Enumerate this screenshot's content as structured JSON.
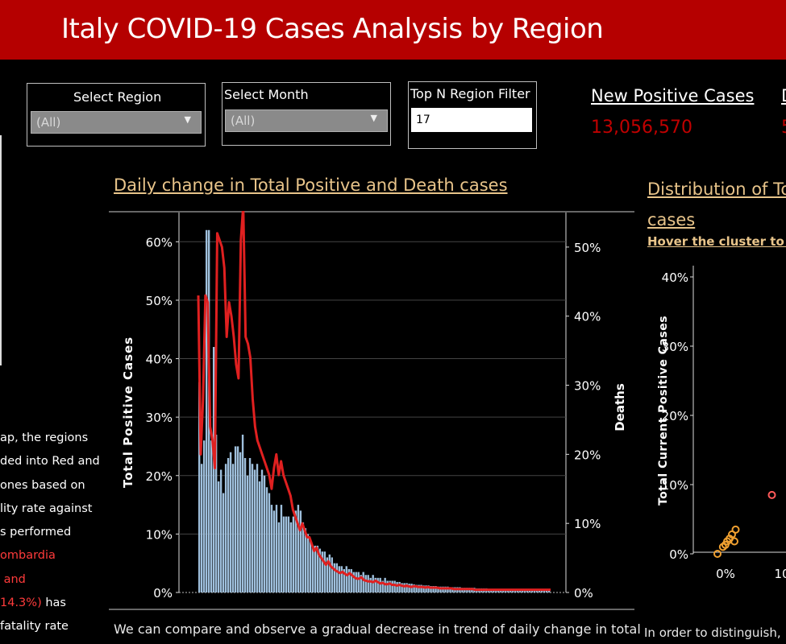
{
  "header": {
    "title": "Italy COVID-19 Cases Analysis by Region"
  },
  "filters": {
    "region": {
      "title": "Select Region",
      "value": "(All)"
    },
    "month": {
      "title": "Select Month",
      "value": "(All)"
    },
    "topn": {
      "title": "Top N Region Filter",
      "value": "17"
    }
  },
  "kpis": [
    {
      "label": "New Positive Cases",
      "value": "13,056,570"
    },
    {
      "label": "D",
      "value": "5"
    }
  ],
  "sidebar": {
    "lines": [
      "ap, the regions",
      "ded into Red and",
      "ones based on",
      "lity rate against",
      "s performed",
      "ombardia",
      " and",
      "14.3%) has",
      "fatality rate"
    ]
  },
  "colors": {
    "header": "#b50000",
    "bars": "#9fc0dd",
    "line": "#e02020",
    "accent_title": "#e8c48a",
    "kpi_value": "#c00000"
  },
  "main_chart": {
    "title": "Daily change in Total Positive and Death cases",
    "caption": "We can compare and  observe a gradual decrease in trend of daily change in total"
  },
  "right_chart": {
    "title_line1": "Distribution of To",
    "title_line2": "cases",
    "subtitle": "Hover the cluster to vi",
    "caption": "In order to distinguish,"
  },
  "chart_data": [
    {
      "type": "bar",
      "title": "Daily change in Total Positive and Death cases",
      "ylabel": "Total Positive Cases",
      "y2label": "Deaths",
      "ylim": [
        0,
        0.65
      ],
      "y2lim": [
        0,
        0.55
      ],
      "yticks": [
        "0%",
        "10%",
        "20%",
        "30%",
        "40%",
        "50%",
        "60%"
      ],
      "y2ticks": [
        "0%",
        "10%",
        "20%",
        "30%",
        "40%",
        "50%"
      ],
      "grid": true,
      "series": [
        {
          "kind": "bar",
          "values": [
            0.36,
            0.22,
            0.26,
            0.62,
            0.62,
            0.26,
            0.42,
            0.27,
            0.19,
            0.21,
            0.17,
            0.22,
            0.23,
            0.24,
            0.22,
            0.25,
            0.25,
            0.24,
            0.27,
            0.23,
            0.2,
            0.23,
            0.22,
            0.21,
            0.22,
            0.19,
            0.21,
            0.2,
            0.18,
            0.17,
            0.15,
            0.14,
            0.15,
            0.12,
            0.15,
            0.13,
            0.13,
            0.13,
            0.12,
            0.13,
            0.14,
            0.15,
            0.14,
            0.12,
            0.11,
            0.1,
            0.09,
            0.08,
            0.08,
            0.08,
            0.075,
            0.07,
            0.07,
            0.06,
            0.065,
            0.06,
            0.05,
            0.05,
            0.045,
            0.045,
            0.04,
            0.045,
            0.04,
            0.04,
            0.035,
            0.035,
            0.035,
            0.03,
            0.035,
            0.03,
            0.03,
            0.025,
            0.03,
            0.025,
            0.025,
            0.025,
            0.02,
            0.025,
            0.02,
            0.02,
            0.02,
            0.02,
            0.018,
            0.018,
            0.016,
            0.016,
            0.016,
            0.015,
            0.015,
            0.014,
            0.013,
            0.013,
            0.013,
            0.012,
            0.012,
            0.012,
            0.011,
            0.011,
            0.011,
            0.01,
            0.01,
            0.01,
            0.01,
            0.01,
            0.009,
            0.009,
            0.009,
            0.009,
            0.009,
            0.008,
            0.008,
            0.008,
            0.008,
            0.008,
            0.008,
            0.007,
            0.007,
            0.007,
            0.007,
            0.007,
            0.006,
            0.006,
            0.006,
            0.006,
            0.006,
            0.006,
            0.005,
            0.005,
            0.005,
            0.005,
            0.005,
            0.005,
            0.005,
            0.005,
            0.004,
            0.004,
            0.004,
            0.004,
            0.004,
            0.004,
            0.004,
            0.004,
            0.004,
            0.004,
            0.004,
            0.004
          ]
        },
        {
          "kind": "line",
          "axis": "secondary",
          "values": [
            0.43,
            0.2,
            0.28,
            0.43,
            0.42,
            0.24,
            0.22,
            0.18,
            0.52,
            0.51,
            0.5,
            0.47,
            0.37,
            0.42,
            0.4,
            0.37,
            0.33,
            0.31,
            0.51,
            0.56,
            0.37,
            0.36,
            0.34,
            0.28,
            0.24,
            0.22,
            0.21,
            0.2,
            0.19,
            0.18,
            0.17,
            0.15,
            0.18,
            0.2,
            0.17,
            0.19,
            0.17,
            0.16,
            0.15,
            0.14,
            0.12,
            0.11,
            0.1,
            0.09,
            0.1,
            0.09,
            0.08,
            0.08,
            0.07,
            0.06,
            0.065,
            0.055,
            0.05,
            0.045,
            0.04,
            0.045,
            0.038,
            0.035,
            0.032,
            0.03,
            0.028,
            0.03,
            0.027,
            0.025,
            0.028,
            0.025,
            0.022,
            0.02,
            0.02,
            0.022,
            0.018,
            0.017,
            0.016,
            0.016,
            0.015,
            0.017,
            0.015,
            0.013,
            0.014,
            0.012,
            0.012,
            0.013,
            0.011,
            0.011,
            0.01,
            0.011,
            0.01,
            0.009,
            0.01,
            0.009,
            0.008,
            0.009,
            0.009,
            0.008,
            0.008,
            0.008,
            0.007,
            0.008,
            0.007,
            0.007,
            0.007,
            0.007,
            0.006,
            0.006,
            0.006,
            0.006,
            0.006,
            0.006,
            0.005,
            0.005,
            0.005,
            0.005,
            0.005,
            0.005,
            0.005,
            0.005,
            0.005,
            0.004,
            0.004,
            0.004,
            0.004,
            0.004,
            0.004,
            0.004,
            0.004,
            0.004,
            0.004,
            0.004,
            0.004,
            0.004,
            0.004,
            0.004,
            0.004,
            0.004,
            0.004,
            0.004,
            0.004,
            0.004,
            0.004,
            0.004,
            0.004,
            0.004,
            0.004,
            0.004,
            0.004,
            0.004,
            0.004,
            0.004,
            0.004,
            0.004
          ]
        }
      ]
    },
    {
      "type": "scatter",
      "ylabel": "Total Current Positive Cases",
      "ylim": [
        0,
        0.4
      ],
      "yticks": [
        "0%",
        "10%",
        "20%",
        "30%",
        "40%"
      ],
      "xticks": [
        "0%",
        "10"
      ],
      "points": [
        {
          "x": 0.0,
          "y": 0.0,
          "color": "#f0a030"
        },
        {
          "x": 0.009,
          "y": 0.01,
          "color": "#f0a030"
        },
        {
          "x": 0.013,
          "y": 0.013,
          "color": "#f0a030"
        },
        {
          "x": 0.016,
          "y": 0.018,
          "color": "#f0a030"
        },
        {
          "x": 0.02,
          "y": 0.022,
          "color": "#f0a030"
        },
        {
          "x": 0.024,
          "y": 0.028,
          "color": "#f0a030"
        },
        {
          "x": 0.028,
          "y": 0.018,
          "color": "#f0a030"
        },
        {
          "x": 0.03,
          "y": 0.035,
          "color": "#f0a030"
        },
        {
          "x": 0.09,
          "y": 0.085,
          "color": "#ff5a5a"
        }
      ]
    }
  ]
}
